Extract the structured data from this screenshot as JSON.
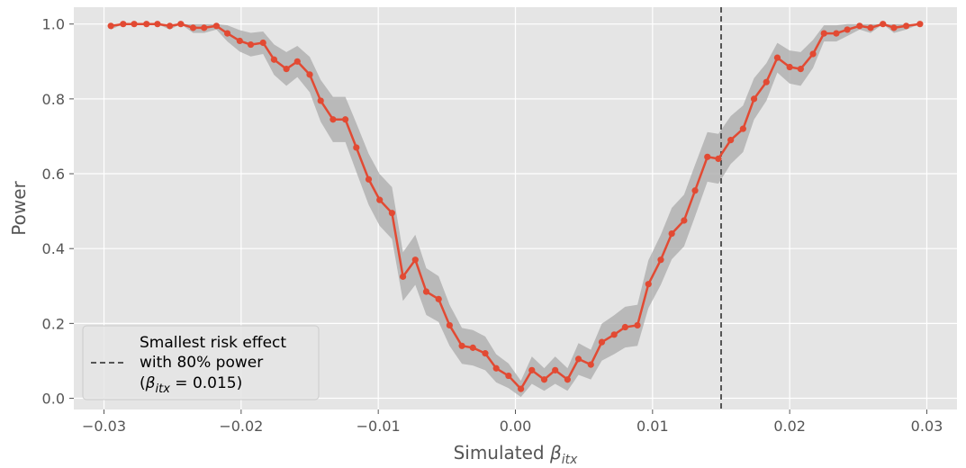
{
  "chart_data": {
    "type": "line",
    "title": "",
    "xlabel": {
      "main": "Simulated ",
      "sym": "β",
      "sub": "itx"
    },
    "ylabel": "Power",
    "xlim": [
      -0.0322,
      0.0322
    ],
    "ylim": [
      -0.03,
      1.045
    ],
    "xticks": [
      -0.03,
      -0.02,
      -0.01,
      0.0,
      0.01,
      0.02,
      0.03
    ],
    "xtick_labels": [
      "−0.03",
      "−0.02",
      "−0.01",
      "0.00",
      "0.01",
      "0.02",
      "0.03"
    ],
    "yticks": [
      0.0,
      0.2,
      0.4,
      0.6,
      0.8,
      1.0
    ],
    "ytick_labels": [
      "0.0",
      "0.2",
      "0.4",
      "0.6",
      "0.8",
      "1.0"
    ],
    "grid": true,
    "legend": {
      "placement": "lower-left",
      "lines": [
        "Smallest risk effect",
        "with 80% power"
      ],
      "formula": {
        "open": "(",
        "sym": "β",
        "sub": "itx",
        "rest": " = 0.015)"
      }
    },
    "vline": {
      "x": 0.015,
      "style": "dashed",
      "color": "#555555"
    },
    "colors": {
      "line": "#E24A33",
      "band": "#A9A9A9",
      "background": "#E5E5E5",
      "grid": "#FFFFFF"
    },
    "series": [
      {
        "x": [
          -0.0295,
          -0.0286,
          -0.0278,
          -0.0269,
          -0.0261,
          -0.0252,
          -0.0244,
          -0.0235,
          -0.0227,
          -0.0218,
          -0.021,
          -0.0201,
          -0.0193,
          -0.0184,
          -0.0176,
          -0.0167,
          -0.0159,
          -0.015,
          -0.0142,
          -0.0133,
          -0.0124,
          -0.0116,
          -0.0107,
          -0.0099,
          -0.009,
          -0.0082,
          -0.0073,
          -0.0065,
          -0.0056,
          -0.0048,
          -0.0039,
          -0.0031,
          -0.0022,
          -0.0014,
          -0.0005,
          0.0004,
          0.0012,
          0.0021,
          0.0029,
          0.0038,
          0.0046,
          0.0055,
          0.0063,
          0.0072,
          0.008,
          0.0089,
          0.0097,
          0.0106,
          0.0114,
          0.0123,
          0.0131,
          0.014,
          0.0148,
          0.0157,
          0.0166,
          0.0174,
          0.0183,
          0.0191,
          0.02,
          0.0208,
          0.0217,
          0.0225,
          0.0234,
          0.0242,
          0.0251,
          0.0259,
          0.0268,
          0.0276,
          0.0285,
          0.0295
        ],
        "y": [
          0.995,
          1.0,
          1.0,
          1.0,
          1.0,
          0.995,
          1.0,
          0.99,
          0.99,
          0.995,
          0.975,
          0.955,
          0.945,
          0.95,
          0.905,
          0.88,
          0.9,
          0.865,
          0.795,
          0.745,
          0.745,
          0.67,
          0.585,
          0.53,
          0.495,
          0.325,
          0.37,
          0.285,
          0.265,
          0.195,
          0.14,
          0.135,
          0.12,
          0.08,
          0.06,
          0.025,
          0.075,
          0.05,
          0.075,
          0.05,
          0.105,
          0.09,
          0.15,
          0.17,
          0.19,
          0.195,
          0.305,
          0.37,
          0.44,
          0.475,
          0.555,
          0.645,
          0.64,
          0.69,
          0.72,
          0.8,
          0.845,
          0.91,
          0.885,
          0.88,
          0.92,
          0.975,
          0.975,
          0.985,
          0.995,
          0.99,
          1.0,
          0.99,
          0.995,
          1.0
        ]
      }
    ]
  }
}
